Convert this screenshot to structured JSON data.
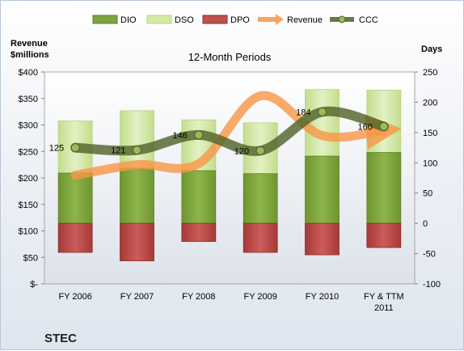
{
  "chart_data": {
    "type": "bar",
    "title": "12-Month Periods",
    "company": "STEC",
    "left_axis_label_line1": "Revenue",
    "left_axis_label_line2": "$millions",
    "right_axis_label": "Days",
    "categories": [
      "FY 2006",
      "FY 2007",
      "FY 2008",
      "FY 2009",
      "FY 2010",
      [
        "FY & TTM",
        "2011"
      ]
    ],
    "left_axis": {
      "min": 0,
      "max": 400,
      "ticks": [
        "$-",
        "$50",
        "$100",
        "$150",
        "$200",
        "$250",
        "$300",
        "$350",
        "$400"
      ]
    },
    "right_axis": {
      "min": -100,
      "max": 250,
      "ticks": [
        "-100",
        "-50",
        "0",
        "50",
        "100",
        "150",
        "200",
        "250"
      ]
    },
    "series": [
      {
        "name": "DIO",
        "axis": "right",
        "values": [
          83,
          91,
          87,
          82,
          111,
          117
        ],
        "color": "#7ea33f"
      },
      {
        "name": "DSO",
        "axis": "right",
        "values": [
          86,
          95,
          84,
          84,
          110,
          103
        ],
        "color": "#d3e9a6"
      },
      {
        "name": "DPO",
        "axis": "right",
        "values": [
          -48,
          -62,
          -30,
          -48,
          -52,
          -40
        ],
        "color": "#c0504d"
      },
      {
        "name": "Revenue",
        "axis": "left",
        "values": [
          205,
          225,
          227,
          355,
          280,
          290
        ],
        "color": "#f79646"
      },
      {
        "name": "CCC",
        "axis": "right",
        "values": [
          125,
          121,
          146,
          120,
          184,
          160
        ],
        "color": "#4f6228"
      }
    ],
    "ccc_labels": [
      "125",
      "121",
      "146",
      "120",
      "184",
      "160"
    ],
    "legend": {
      "position": "top",
      "labels": [
        "DIO",
        "DSO",
        "DPO",
        "Revenue",
        "CCC"
      ]
    },
    "grid": false
  }
}
